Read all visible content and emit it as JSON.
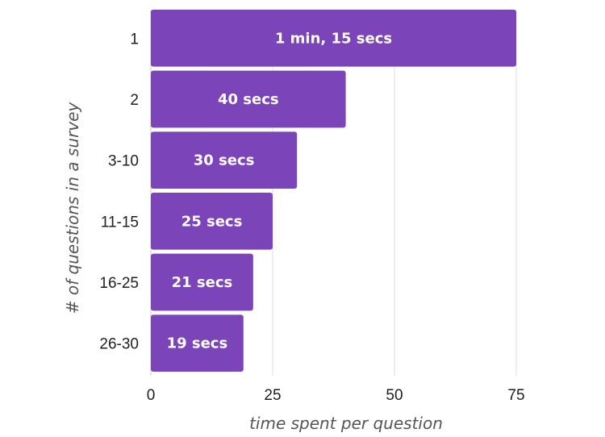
{
  "chart_data": {
    "type": "bar",
    "orientation": "horizontal",
    "categories": [
      "1",
      "2",
      "3-10",
      "11-15",
      "16-25",
      "26-30"
    ],
    "values": [
      75,
      40,
      30,
      25,
      21,
      19
    ],
    "data_labels": [
      "1 min, 15 secs",
      "40 secs",
      "30 secs",
      "25 secs",
      "21 secs",
      "19 secs"
    ],
    "xlabel": "time spent per question",
    "ylabel": "# of questions in a survey",
    "xlim": [
      0,
      75
    ],
    "x_ticks": [
      0,
      25,
      50,
      75
    ],
    "grid": "vertical",
    "bar_color": "#7b44b8",
    "grid_color": "#dcdcdc"
  }
}
